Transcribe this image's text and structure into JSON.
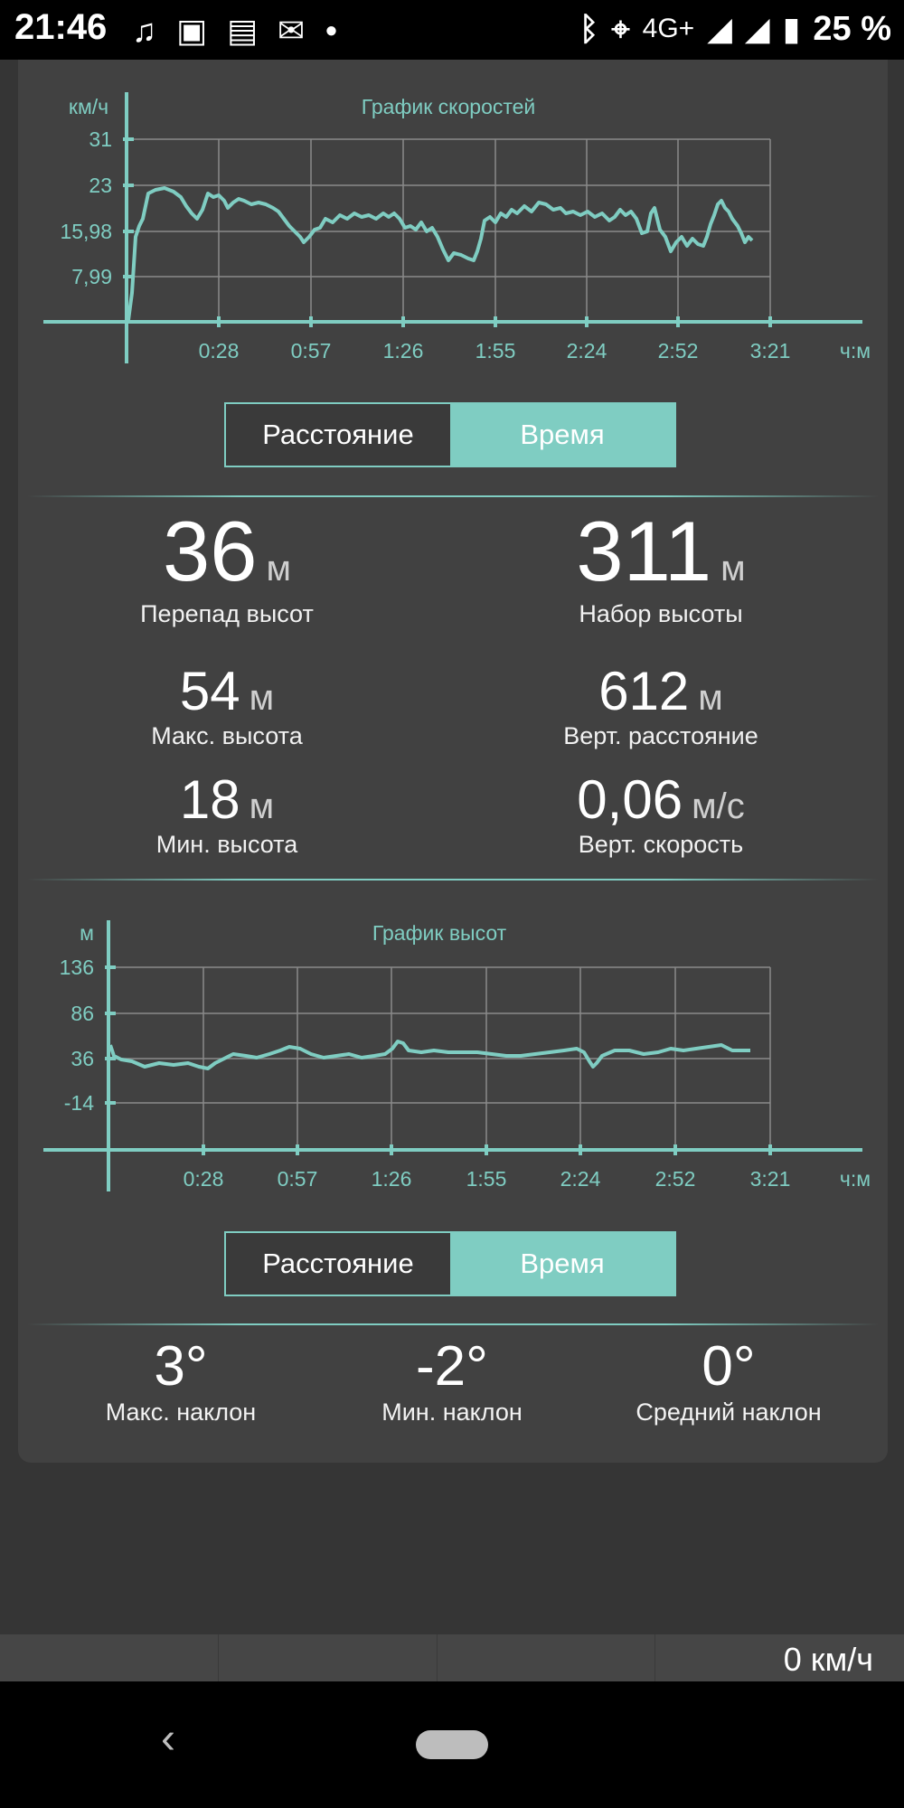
{
  "status_bar": {
    "time": "21:46",
    "left_icons": [
      "music-note-icon",
      "image-icon",
      "message-icon",
      "mail-icon",
      "dot-icon"
    ],
    "network": "4G+",
    "battery": "25 %",
    "right_icons": [
      "bluetooth-icon",
      "location-icon",
      "signal-icon",
      "signal-icon",
      "battery-icon"
    ]
  },
  "speed_chart": {
    "title": "График скоростей",
    "y_unit": "км/ч",
    "x_unit": "ч:м",
    "y_ticks": [
      "31",
      "23",
      "15,98",
      "7,99"
    ],
    "x_ticks": [
      "0:28",
      "0:57",
      "1:26",
      "1:55",
      "2:24",
      "2:52",
      "3:21"
    ]
  },
  "speed_toggle": {
    "left": "Расстояние",
    "right": "Время",
    "selected": "right"
  },
  "elevation_stats": [
    {
      "value": "36",
      "unit": "м",
      "label": "Перепад высот"
    },
    {
      "value": "311",
      "unit": "м",
      "label": "Набор высоты"
    },
    {
      "value": "54",
      "unit": "м",
      "label": "Макс. высота"
    },
    {
      "value": "612",
      "unit": "м",
      "label": "Верт. расстояние"
    },
    {
      "value": "18",
      "unit": "м",
      "label": "Мин. высота"
    },
    {
      "value": "0,06",
      "unit": "м/с",
      "label": "Верт. скорость"
    }
  ],
  "altitude_chart": {
    "title": "График высот",
    "y_unit": "м",
    "x_unit": "ч:м",
    "y_ticks": [
      "136",
      "86",
      "36",
      "-14"
    ],
    "x_ticks": [
      "0:28",
      "0:57",
      "1:26",
      "1:55",
      "2:24",
      "2:52",
      "3:21"
    ]
  },
  "altitude_toggle": {
    "left": "Расстояние",
    "right": "Время",
    "selected": "right"
  },
  "slopes": [
    {
      "value": "3°",
      "label": "Макс. наклон"
    },
    {
      "value": "-2°",
      "label": "Мин. наклон"
    },
    {
      "value": "0°",
      "label": "Средний наклон"
    }
  ],
  "bottom_bar": {
    "speed": "0 км/ч"
  },
  "colors": {
    "accent": "#7fcdc2",
    "card": "#414141",
    "background": "#353535"
  }
}
